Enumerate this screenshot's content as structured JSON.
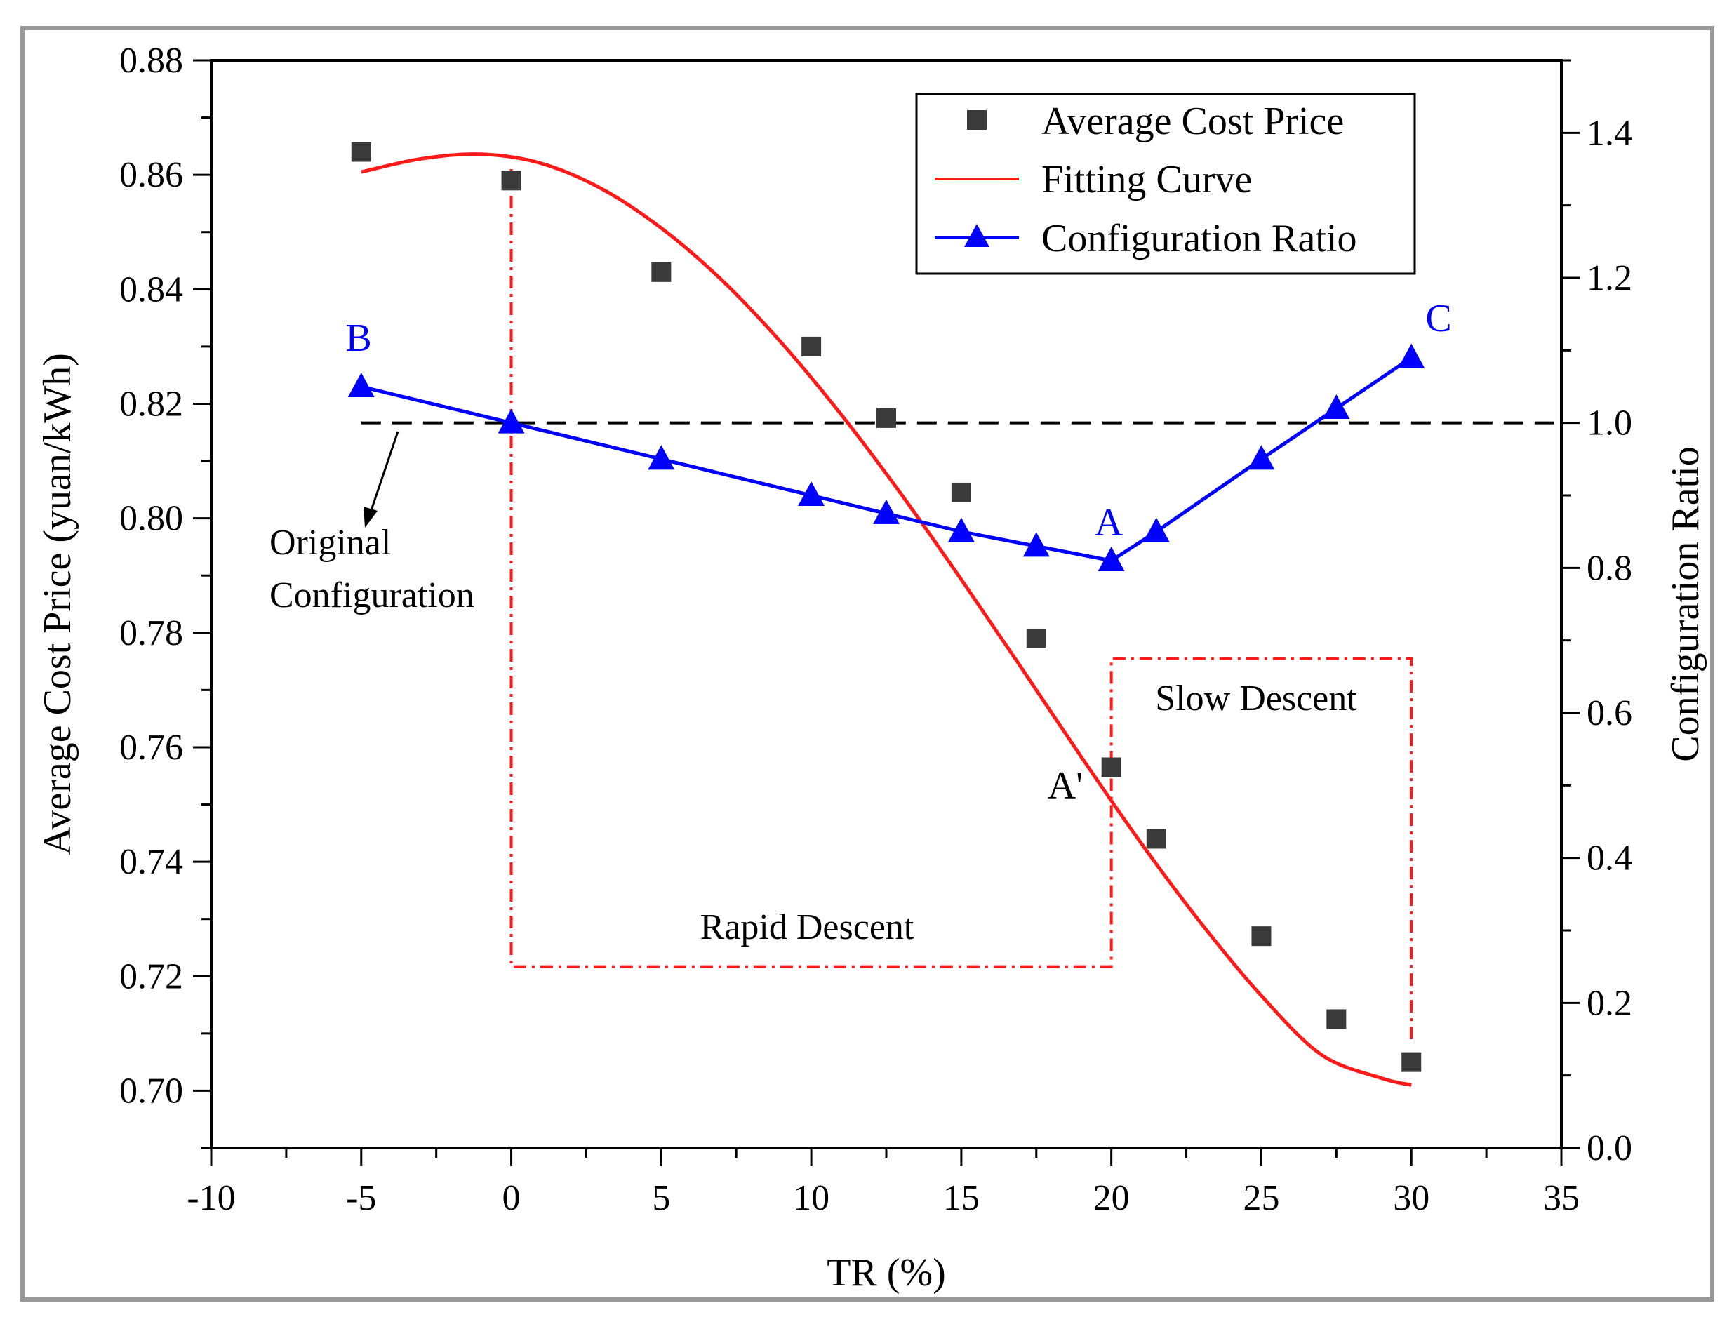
{
  "chart_data": {
    "type": "scatter",
    "xlabel": "TR (%)",
    "ylabel": "Average Cost Price (yuan/kWh)",
    "y2label": "Configuration Ratio",
    "xlim": [
      -10,
      35
    ],
    "ylim": [
      0.69,
      0.88
    ],
    "y2lim": [
      0.0,
      1.5
    ],
    "xticks": [
      "-10",
      "-5",
      "0",
      "5",
      "10",
      "15",
      "20",
      "25",
      "30",
      "35"
    ],
    "yticks": [
      "0.70",
      "0.72",
      "0.74",
      "0.76",
      "0.78",
      "0.80",
      "0.82",
      "0.84",
      "0.86",
      "0.88"
    ],
    "y2ticks": [
      "0.0",
      "0.2",
      "0.4",
      "0.6",
      "0.8",
      "1.0",
      "1.2",
      "1.4"
    ],
    "legend": [
      "Average Cost Price",
      "Fitting Curve",
      "Configuration Ratio"
    ],
    "series": [
      {
        "name": "Average Cost Price",
        "marker": "square",
        "color": "#3a3a3a",
        "x": [
          -5,
          0,
          5,
          10,
          12.5,
          15,
          17.5,
          20,
          21.5,
          25,
          27.5,
          30
        ],
        "y": [
          0.864,
          0.859,
          0.843,
          0.83,
          0.8175,
          0.8045,
          0.779,
          0.7565,
          0.744,
          0.727,
          0.7125,
          0.705
        ]
      },
      {
        "name": "Fitting Curve",
        "color": "#ff1a1a",
        "x": [
          -5,
          -3,
          -1,
          1,
          3,
          5,
          7,
          9,
          11,
          13,
          15,
          17,
          19,
          21,
          23,
          25,
          27,
          29,
          30
        ],
        "y": [
          0.8605,
          0.8628,
          0.8636,
          0.862,
          0.8576,
          0.8507,
          0.8417,
          0.8307,
          0.8181,
          0.8042,
          0.7893,
          0.7739,
          0.7583,
          0.7432,
          0.7292,
          0.7166,
          0.7063,
          0.7022,
          0.701
        ]
      },
      {
        "name": "Configuration Ratio",
        "marker": "triangle",
        "color": "#0000ff",
        "axis": "y2",
        "x": [
          -5,
          0,
          5,
          10,
          12.5,
          15,
          17.5,
          20,
          21.5,
          25,
          27.5,
          30
        ],
        "y": [
          1.05,
          1.0,
          0.95,
          0.9,
          0.875,
          0.85,
          0.83,
          0.81,
          0.85,
          0.95,
          1.02,
          1.09
        ]
      }
    ],
    "reference_line": {
      "y2": 1.0,
      "style": "dashed",
      "color": "#000000"
    },
    "regions": [
      {
        "label": "Rapid Descent",
        "x": [
          0,
          20
        ],
        "y2": [
          0.25,
          1.35
        ]
      },
      {
        "label": "Slow Descent",
        "x": [
          20,
          30
        ],
        "y2": [
          0.15,
          0.675
        ]
      }
    ],
    "annotations": {
      "original_line1": "Original",
      "original_line2": "Configuration",
      "rapid": "Rapid Descent",
      "slow": "Slow Descent",
      "A": "A",
      "A_prime": "A'",
      "B": "B",
      "C": "C"
    }
  }
}
